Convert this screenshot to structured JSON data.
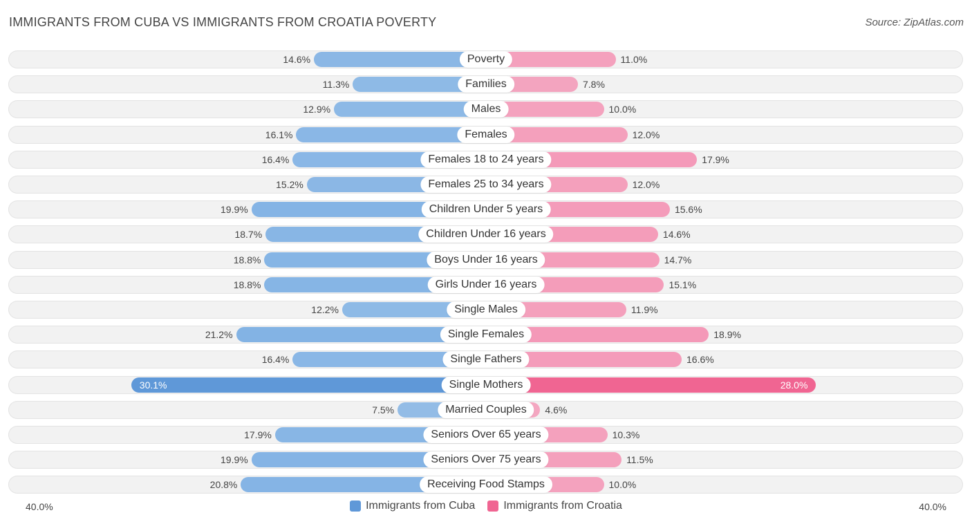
{
  "title": "IMMIGRANTS FROM CUBA VS IMMIGRANTS FROM CROATIA POVERTY",
  "source": "Source: ZipAtlas.com",
  "axis": {
    "left_label": "40.0%",
    "right_label": "40.0%"
  },
  "legend": {
    "series_a": "Immigrants from Cuba",
    "series_b": "Immigrants from Croatia"
  },
  "colors": {
    "cuba": "#7aaee3",
    "cuba_strong": "#5f98d8",
    "croatia": "#f48fb1",
    "croatia_strong": "#f06592"
  },
  "chart_data": {
    "type": "bar",
    "orientation": "diverging-horizontal",
    "title": "IMMIGRANTS FROM CUBA VS IMMIGRANTS FROM CROATIA POVERTY",
    "xlim": [
      -40,
      40
    ],
    "unit": "%",
    "categories": [
      "Poverty",
      "Families",
      "Males",
      "Females",
      "Females 18 to 24 years",
      "Females 25 to 34 years",
      "Children Under 5 years",
      "Children Under 16 years",
      "Boys Under 16 years",
      "Girls Under 16 years",
      "Single Males",
      "Single Females",
      "Single Fathers",
      "Single Mothers",
      "Married Couples",
      "Seniors Over 65 years",
      "Seniors Over 75 years",
      "Receiving Food Stamps"
    ],
    "series": [
      {
        "name": "Immigrants from Cuba",
        "values": [
          14.6,
          11.3,
          12.9,
          16.1,
          16.4,
          15.2,
          19.9,
          18.7,
          18.8,
          18.8,
          12.2,
          21.2,
          16.4,
          30.1,
          7.5,
          17.9,
          19.9,
          20.8
        ],
        "labels": [
          "14.6%",
          "11.3%",
          "12.9%",
          "16.1%",
          "16.4%",
          "15.2%",
          "19.9%",
          "18.7%",
          "18.8%",
          "18.8%",
          "12.2%",
          "21.2%",
          "16.4%",
          "30.1%",
          "7.5%",
          "17.9%",
          "19.9%",
          "20.8%"
        ]
      },
      {
        "name": "Immigrants from Croatia",
        "values": [
          11.0,
          7.8,
          10.0,
          12.0,
          17.9,
          12.0,
          15.6,
          14.6,
          14.7,
          15.1,
          11.9,
          18.9,
          16.6,
          28.0,
          4.6,
          10.3,
          11.5,
          10.0
        ],
        "labels": [
          "11.0%",
          "7.8%",
          "10.0%",
          "12.0%",
          "17.9%",
          "12.0%",
          "15.6%",
          "14.6%",
          "14.7%",
          "15.1%",
          "11.9%",
          "18.9%",
          "16.6%",
          "28.0%",
          "4.6%",
          "10.3%",
          "11.5%",
          "10.0%"
        ]
      }
    ],
    "highlight_category": "Single Mothers"
  }
}
